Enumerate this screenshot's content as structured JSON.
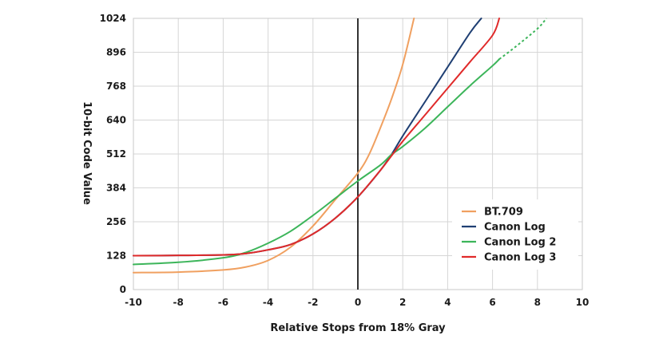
{
  "chart_data": {
    "type": "line",
    "title": "",
    "xlabel": "Relative Stops from 18% Gray",
    "ylabel": "10-bit Code Value",
    "xlim": [
      -10,
      10
    ],
    "ylim": [
      0,
      1024
    ],
    "xticks": [
      -10,
      -8,
      -6,
      -4,
      -2,
      0,
      2,
      4,
      6,
      8,
      10
    ],
    "yticks": [
      0,
      128,
      256,
      384,
      512,
      640,
      768,
      896,
      1024
    ],
    "xtick_labels": [
      "-10",
      "-8",
      "-6",
      "-4",
      "-2",
      "0",
      "2",
      "4",
      "6",
      "8",
      "10"
    ],
    "ytick_labels": [
      "0",
      "128",
      "256",
      "384",
      "512",
      "640",
      "768",
      "896",
      "1024"
    ],
    "grid": true,
    "reference_line_x": 0,
    "legend_position": "bottom-right",
    "series": [
      {
        "name": "BT.709",
        "color": "#f0a060",
        "x": [
          -10,
          -8,
          -6,
          -5,
          -4,
          -3,
          -2,
          -1,
          0,
          0.5,
          1,
          1.5,
          2,
          2.5
        ],
        "y": [
          64,
          66,
          74,
          85,
          110,
          160,
          240,
          340,
          440,
          510,
          610,
          720,
          850,
          1024
        ]
      },
      {
        "name": "Canon Log",
        "color": "#1f3f73",
        "x": [
          -10,
          -8,
          -6,
          -5,
          -4,
          -3,
          -2,
          -1,
          0,
          1,
          1.5,
          2,
          3,
          4,
          5,
          5.5
        ],
        "y": [
          128,
          129,
          131,
          136,
          150,
          170,
          210,
          270,
          350,
          450,
          510,
          580,
          710,
          840,
          970,
          1024
        ]
      },
      {
        "name": "Canon Log 2",
        "color": "#3cb55a",
        "x": [
          -10,
          -8,
          -6,
          -5,
          -4,
          -3,
          -2,
          -1,
          0,
          1,
          1.5,
          2,
          3,
          4,
          5,
          6,
          6.3
        ],
        "y": [
          95,
          103,
          120,
          140,
          175,
          220,
          280,
          345,
          410,
          470,
          510,
          540,
          610,
          690,
          770,
          845,
          870
        ],
        "extension": {
          "style": "dashed",
          "x": [
            6.3,
            7,
            8,
            8.4
          ],
          "y": [
            870,
            915,
            985,
            1024
          ]
        }
      },
      {
        "name": "Canon Log 3",
        "color": "#e02a2a",
        "x": [
          -10,
          -8,
          -6,
          -5,
          -4,
          -3,
          -2,
          -1,
          0,
          1,
          1.5,
          2,
          3,
          4,
          5,
          6,
          6.3
        ],
        "y": [
          128,
          129,
          131,
          136,
          150,
          170,
          210,
          270,
          350,
          450,
          505,
          560,
          660,
          760,
          860,
          960,
          1024
        ]
      }
    ]
  }
}
